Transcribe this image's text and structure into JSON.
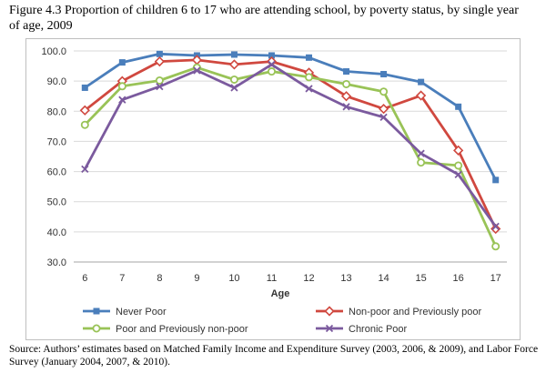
{
  "figure": {
    "title": "Figure 4.3 Proportion of children 6 to 17 who are attending school, by poverty status, by single year of age, 2009",
    "source": "Source: Authors’ estimates based on Matched Family Income and Expenditure Survey (2003, 2006, & 2009), and Labor Force Survey (January 2004, 2007, & 2010)."
  },
  "chart_data": {
    "type": "line",
    "title": "",
    "xlabel": "Age",
    "ylabel": "",
    "x": [
      6,
      7,
      8,
      9,
      10,
      11,
      12,
      13,
      14,
      15,
      16,
      17
    ],
    "ylim": [
      30,
      100
    ],
    "yticks": [
      "30.0",
      "40.0",
      "50.0",
      "60.0",
      "70.0",
      "80.0",
      "90.0",
      "100.0"
    ],
    "grid": true,
    "legend_position": "bottom",
    "series": [
      {
        "name": "Never Poor",
        "color": "#4a7ebb",
        "marker": "square",
        "values": [
          87.8,
          96.2,
          99.0,
          98.5,
          98.8,
          98.5,
          97.8,
          93.2,
          92.3,
          89.7,
          81.5,
          57.2
        ]
      },
      {
        "name": "Non-poor and Previously poor",
        "color": "#d0483f",
        "marker": "diamond",
        "values": [
          80.3,
          90.0,
          96.5,
          97.0,
          95.5,
          96.5,
          92.8,
          85.0,
          80.8,
          85.2,
          67.0,
          41.0
        ]
      },
      {
        "name": "Poor and Previously non-poor",
        "color": "#99c357",
        "marker": "circle",
        "values": [
          75.5,
          88.3,
          90.2,
          94.5,
          90.5,
          93.2,
          91.3,
          89.0,
          86.5,
          63.0,
          62.0,
          35.2
        ]
      },
      {
        "name": "Chronic Poor",
        "color": "#7b5a9e",
        "marker": "x",
        "values": [
          60.8,
          83.8,
          88.2,
          93.5,
          87.8,
          95.5,
          87.5,
          81.5,
          78.0,
          66.0,
          59.0,
          41.8
        ]
      }
    ]
  }
}
